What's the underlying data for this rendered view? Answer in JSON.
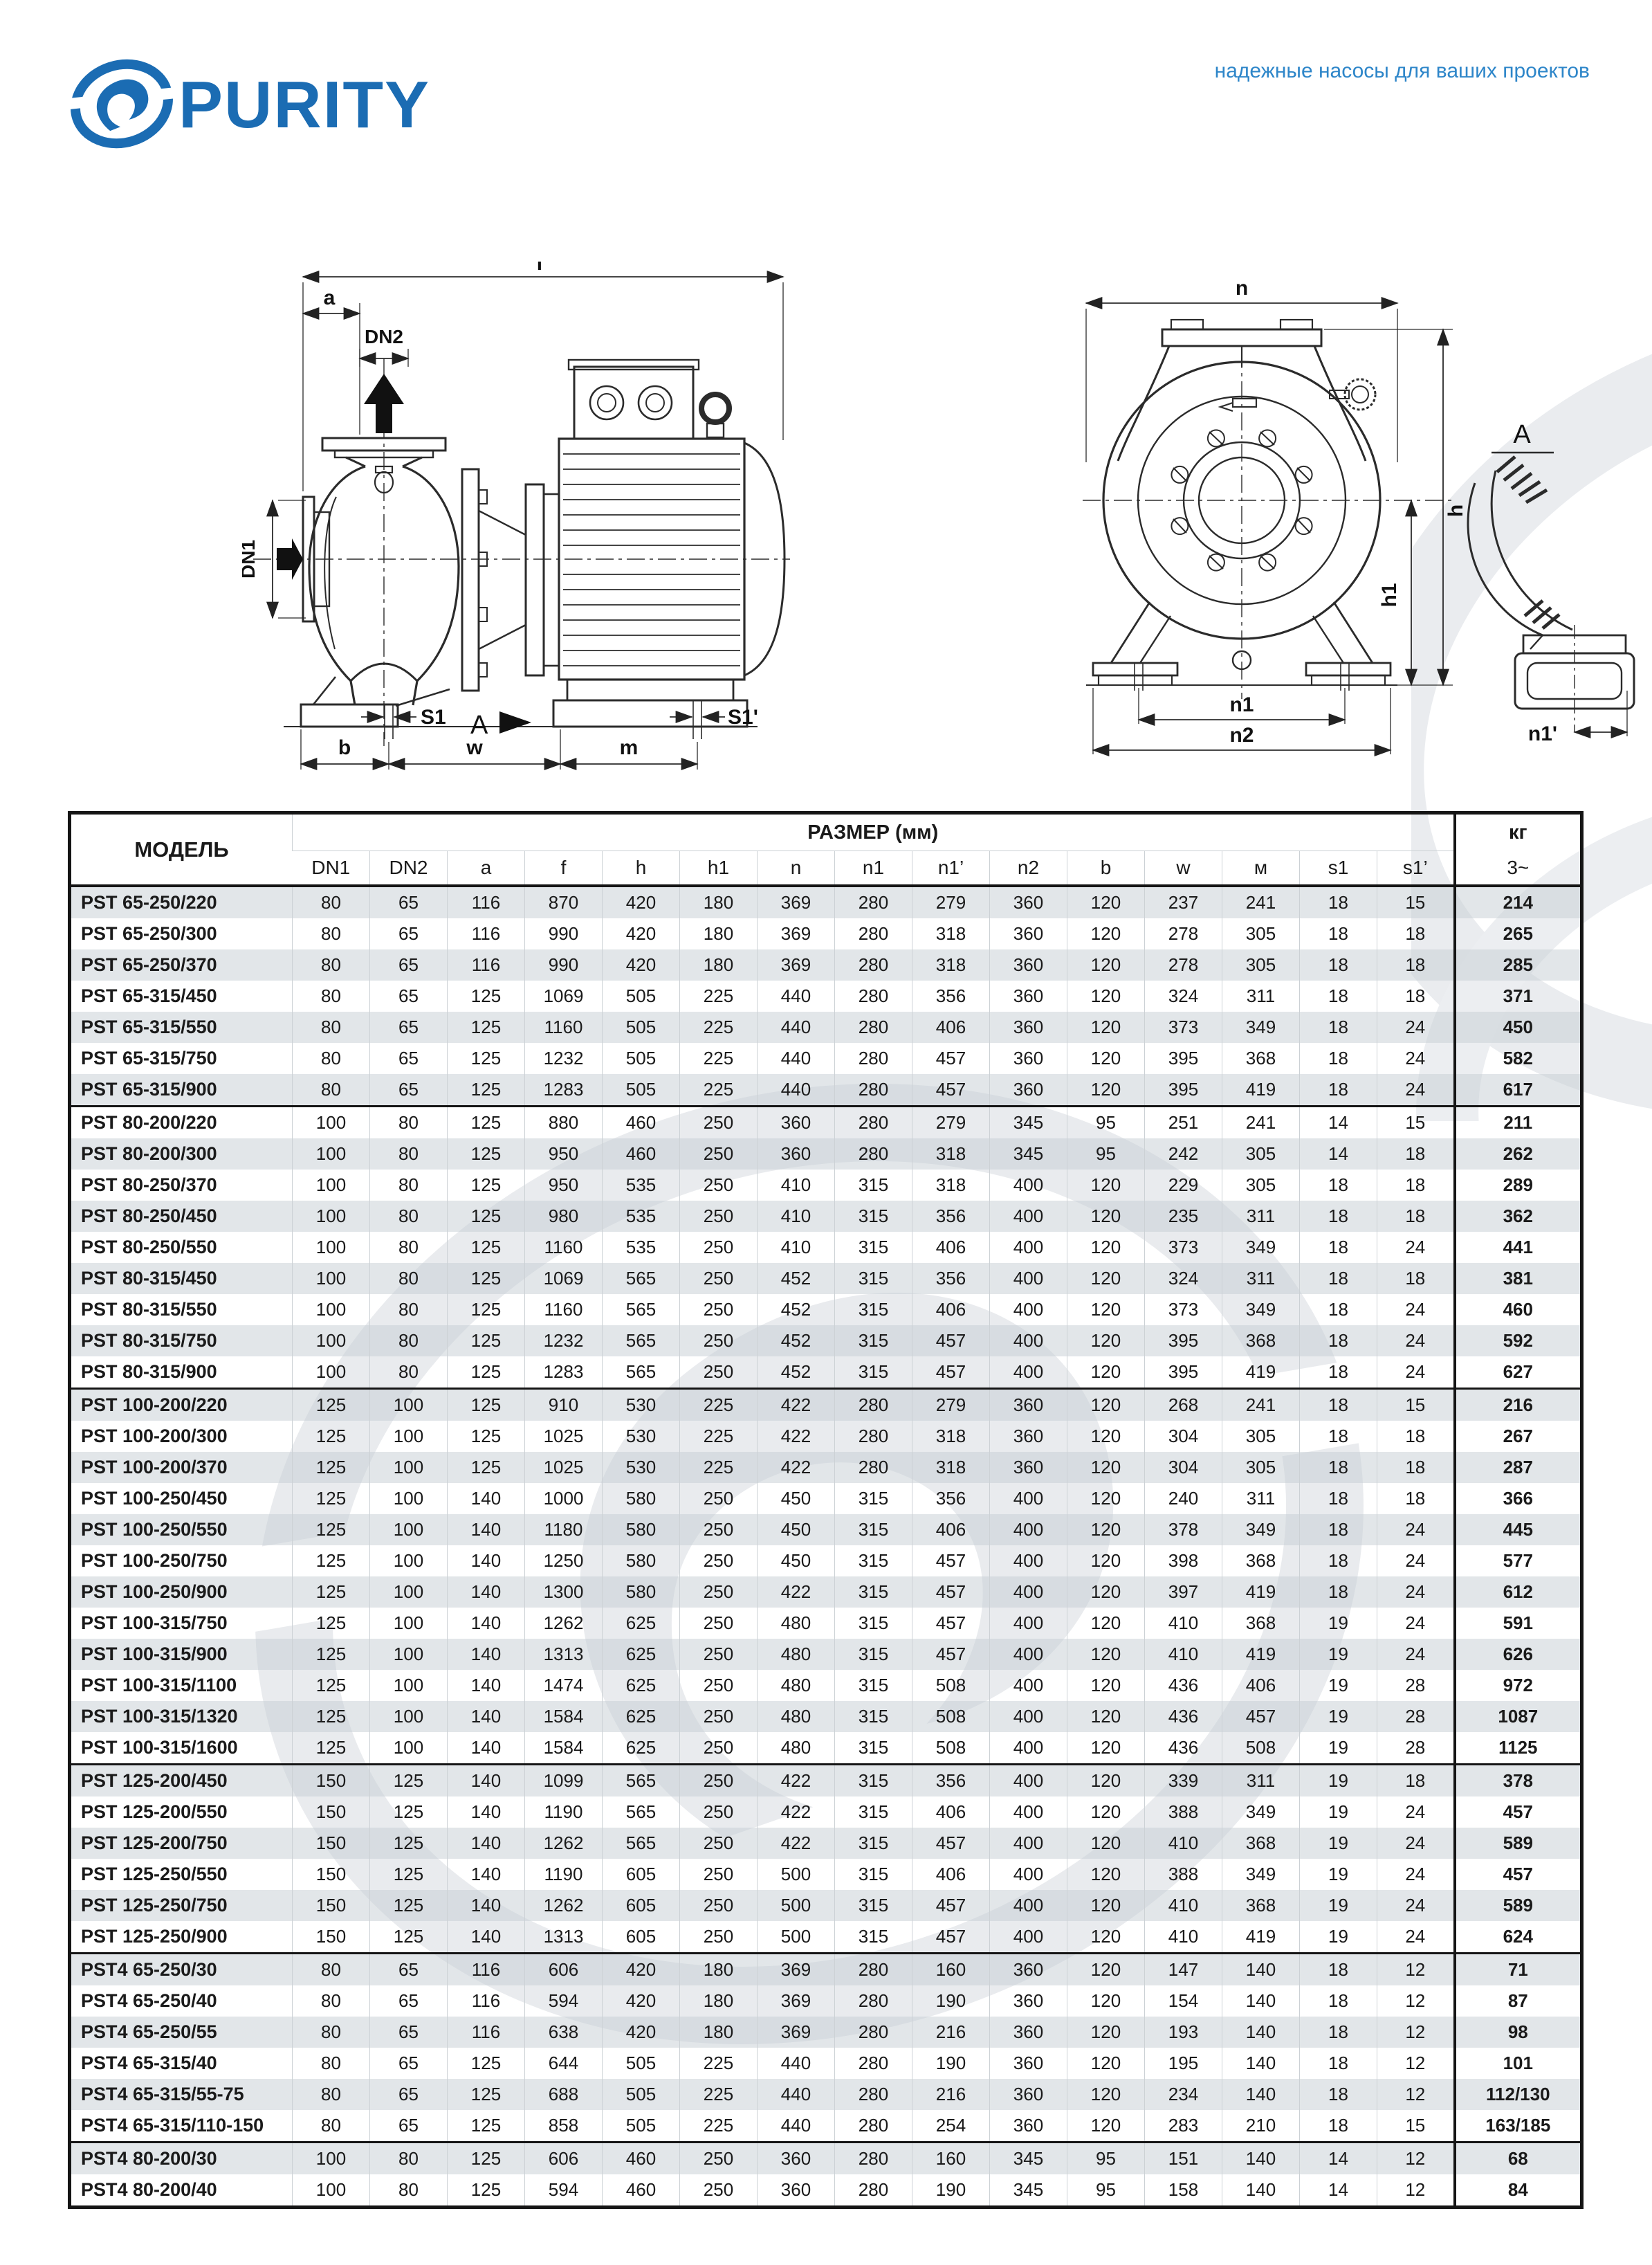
{
  "brand": {
    "wordmark": "PURITY",
    "tagline": "надежные насосы для ваших проектов",
    "accent_color": "#1b6cb3",
    "tagline_color": "#2e86c9"
  },
  "diagram": {
    "f": "f",
    "a": "a",
    "dn2": "DN2",
    "dn1": "DN1",
    "s1": "S1",
    "view_a": "A",
    "s1_prime": "S1'",
    "b": "b",
    "w": "w",
    "m": "m",
    "n": "n",
    "h": "h",
    "h1": "h1",
    "n1": "n1",
    "n2": "n2",
    "detail_a": "A",
    "n1_prime": "n1'"
  },
  "table": {
    "header": {
      "model": "МОДЕЛЬ",
      "size_group": "РАЗМЕР (мм)",
      "kg": "кг",
      "kg_sub": "3~",
      "dims": [
        "DN1",
        "DN2",
        "a",
        "f",
        "h",
        "h1",
        "n",
        "n1",
        "n1’",
        "n2",
        "b",
        "w",
        "м",
        "s1",
        "s1’"
      ]
    },
    "groups": [
      {
        "rows": [
          {
            "model": "PST 65-250/220",
            "values": [
              "80",
              "65",
              "116",
              "870",
              "420",
              "180",
              "369",
              "280",
              "279",
              "360",
              "120",
              "237",
              "241",
              "18",
              "15"
            ],
            "kg": "214"
          },
          {
            "model": "PST 65-250/300",
            "values": [
              "80",
              "65",
              "116",
              "990",
              "420",
              "180",
              "369",
              "280",
              "318",
              "360",
              "120",
              "278",
              "305",
              "18",
              "18"
            ],
            "kg": "265"
          },
          {
            "model": "PST 65-250/370",
            "values": [
              "80",
              "65",
              "116",
              "990",
              "420",
              "180",
              "369",
              "280",
              "318",
              "360",
              "120",
              "278",
              "305",
              "18",
              "18"
            ],
            "kg": "285"
          },
          {
            "model": "PST 65-315/450",
            "values": [
              "80",
              "65",
              "125",
              "1069",
              "505",
              "225",
              "440",
              "280",
              "356",
              "360",
              "120",
              "324",
              "311",
              "18",
              "18"
            ],
            "kg": "371"
          },
          {
            "model": "PST 65-315/550",
            "values": [
              "80",
              "65",
              "125",
              "1160",
              "505",
              "225",
              "440",
              "280",
              "406",
              "360",
              "120",
              "373",
              "349",
              "18",
              "24"
            ],
            "kg": "450"
          },
          {
            "model": "PST 65-315/750",
            "values": [
              "80",
              "65",
              "125",
              "1232",
              "505",
              "225",
              "440",
              "280",
              "457",
              "360",
              "120",
              "395",
              "368",
              "18",
              "24"
            ],
            "kg": "582"
          },
          {
            "model": "PST 65-315/900",
            "values": [
              "80",
              "65",
              "125",
              "1283",
              "505",
              "225",
              "440",
              "280",
              "457",
              "360",
              "120",
              "395",
              "419",
              "18",
              "24"
            ],
            "kg": "617"
          }
        ]
      },
      {
        "rows": [
          {
            "model": "PST 80-200/220",
            "values": [
              "100",
              "80",
              "125",
              "880",
              "460",
              "250",
              "360",
              "280",
              "279",
              "345",
              "95",
              "251",
              "241",
              "14",
              "15"
            ],
            "kg": "211"
          },
          {
            "model": "PST 80-200/300",
            "values": [
              "100",
              "80",
              "125",
              "950",
              "460",
              "250",
              "360",
              "280",
              "318",
              "345",
              "95",
              "242",
              "305",
              "14",
              "18"
            ],
            "kg": "262"
          },
          {
            "model": "PST 80-250/370",
            "values": [
              "100",
              "80",
              "125",
              "950",
              "535",
              "250",
              "410",
              "315",
              "318",
              "400",
              "120",
              "229",
              "305",
              "18",
              "18"
            ],
            "kg": "289"
          },
          {
            "model": "PST 80-250/450",
            "values": [
              "100",
              "80",
              "125",
              "980",
              "535",
              "250",
              "410",
              "315",
              "356",
              "400",
              "120",
              "235",
              "311",
              "18",
              "18"
            ],
            "kg": "362"
          },
          {
            "model": "PST 80-250/550",
            "values": [
              "100",
              "80",
              "125",
              "1160",
              "535",
              "250",
              "410",
              "315",
              "406",
              "400",
              "120",
              "373",
              "349",
              "18",
              "24"
            ],
            "kg": "441"
          },
          {
            "model": "PST 80-315/450",
            "values": [
              "100",
              "80",
              "125",
              "1069",
              "565",
              "250",
              "452",
              "315",
              "356",
              "400",
              "120",
              "324",
              "311",
              "18",
              "18"
            ],
            "kg": "381"
          },
          {
            "model": "PST 80-315/550",
            "values": [
              "100",
              "80",
              "125",
              "1160",
              "565",
              "250",
              "452",
              "315",
              "406",
              "400",
              "120",
              "373",
              "349",
              "18",
              "24"
            ],
            "kg": "460"
          },
          {
            "model": "PST 80-315/750",
            "values": [
              "100",
              "80",
              "125",
              "1232",
              "565",
              "250",
              "452",
              "315",
              "457",
              "400",
              "120",
              "395",
              "368",
              "18",
              "24"
            ],
            "kg": "592"
          },
          {
            "model": "PST 80-315/900",
            "values": [
              "100",
              "80",
              "125",
              "1283",
              "565",
              "250",
              "452",
              "315",
              "457",
              "400",
              "120",
              "395",
              "419",
              "18",
              "24"
            ],
            "kg": "627"
          }
        ]
      },
      {
        "rows": [
          {
            "model": "PST 100-200/220",
            "values": [
              "125",
              "100",
              "125",
              "910",
              "530",
              "225",
              "422",
              "280",
              "279",
              "360",
              "120",
              "268",
              "241",
              "18",
              "15"
            ],
            "kg": "216"
          },
          {
            "model": "PST 100-200/300",
            "values": [
              "125",
              "100",
              "125",
              "1025",
              "530",
              "225",
              "422",
              "280",
              "318",
              "360",
              "120",
              "304",
              "305",
              "18",
              "18"
            ],
            "kg": "267"
          },
          {
            "model": "PST 100-200/370",
            "values": [
              "125",
              "100",
              "125",
              "1025",
              "530",
              "225",
              "422",
              "280",
              "318",
              "360",
              "120",
              "304",
              "305",
              "18",
              "18"
            ],
            "kg": "287"
          },
          {
            "model": "PST 100-250/450",
            "values": [
              "125",
              "100",
              "140",
              "1000",
              "580",
              "250",
              "450",
              "315",
              "356",
              "400",
              "120",
              "240",
              "311",
              "18",
              "18"
            ],
            "kg": "366"
          },
          {
            "model": "PST 100-250/550",
            "values": [
              "125",
              "100",
              "140",
              "1180",
              "580",
              "250",
              "450",
              "315",
              "406",
              "400",
              "120",
              "378",
              "349",
              "18",
              "24"
            ],
            "kg": "445"
          },
          {
            "model": "PST 100-250/750",
            "values": [
              "125",
              "100",
              "140",
              "1250",
              "580",
              "250",
              "450",
              "315",
              "457",
              "400",
              "120",
              "398",
              "368",
              "18",
              "24"
            ],
            "kg": "577"
          },
          {
            "model": "PST 100-250/900",
            "values": [
              "125",
              "100",
              "140",
              "1300",
              "580",
              "250",
              "422",
              "315",
              "457",
              "400",
              "120",
              "397",
              "419",
              "18",
              "24"
            ],
            "kg": "612"
          },
          {
            "model": "PST 100-315/750",
            "values": [
              "125",
              "100",
              "140",
              "1262",
              "625",
              "250",
              "480",
              "315",
              "457",
              "400",
              "120",
              "410",
              "368",
              "19",
              "24"
            ],
            "kg": "591"
          },
          {
            "model": "PST 100-315/900",
            "values": [
              "125",
              "100",
              "140",
              "1313",
              "625",
              "250",
              "480",
              "315",
              "457",
              "400",
              "120",
              "410",
              "419",
              "19",
              "24"
            ],
            "kg": "626"
          },
          {
            "model": "PST 100-315/1100",
            "values": [
              "125",
              "100",
              "140",
              "1474",
              "625",
              "250",
              "480",
              "315",
              "508",
              "400",
              "120",
              "436",
              "406",
              "19",
              "28"
            ],
            "kg": "972"
          },
          {
            "model": "PST 100-315/1320",
            "values": [
              "125",
              "100",
              "140",
              "1584",
              "625",
              "250",
              "480",
              "315",
              "508",
              "400",
              "120",
              "436",
              "457",
              "19",
              "28"
            ],
            "kg": "1087"
          },
          {
            "model": "PST 100-315/1600",
            "values": [
              "125",
              "100",
              "140",
              "1584",
              "625",
              "250",
              "480",
              "315",
              "508",
              "400",
              "120",
              "436",
              "508",
              "19",
              "28"
            ],
            "kg": "1125"
          }
        ]
      },
      {
        "rows": [
          {
            "model": "PST 125-200/450",
            "values": [
              "150",
              "125",
              "140",
              "1099",
              "565",
              "250",
              "422",
              "315",
              "356",
              "400",
              "120",
              "339",
              "311",
              "19",
              "18"
            ],
            "kg": "378"
          },
          {
            "model": "PST 125-200/550",
            "values": [
              "150",
              "125",
              "140",
              "1190",
              "565",
              "250",
              "422",
              "315",
              "406",
              "400",
              "120",
              "388",
              "349",
              "19",
              "24"
            ],
            "kg": "457"
          },
          {
            "model": "PST 125-200/750",
            "values": [
              "150",
              "125",
              "140",
              "1262",
              "565",
              "250",
              "422",
              "315",
              "457",
              "400",
              "120",
              "410",
              "368",
              "19",
              "24"
            ],
            "kg": "589"
          },
          {
            "model": "PST 125-250/550",
            "values": [
              "150",
              "125",
              "140",
              "1190",
              "605",
              "250",
              "500",
              "315",
              "406",
              "400",
              "120",
              "388",
              "349",
              "19",
              "24"
            ],
            "kg": "457"
          },
          {
            "model": "PST 125-250/750",
            "values": [
              "150",
              "125",
              "140",
              "1262",
              "605",
              "250",
              "500",
              "315",
              "457",
              "400",
              "120",
              "410",
              "368",
              "19",
              "24"
            ],
            "kg": "589"
          },
          {
            "model": "PST 125-250/900",
            "values": [
              "150",
              "125",
              "140",
              "1313",
              "605",
              "250",
              "500",
              "315",
              "457",
              "400",
              "120",
              "410",
              "419",
              "19",
              "24"
            ],
            "kg": "624"
          }
        ]
      },
      {
        "rows": [
          {
            "model": "PST4 65-250/30",
            "values": [
              "80",
              "65",
              "116",
              "606",
              "420",
              "180",
              "369",
              "280",
              "160",
              "360",
              "120",
              "147",
              "140",
              "18",
              "12"
            ],
            "kg": "71"
          },
          {
            "model": "PST4 65-250/40",
            "values": [
              "80",
              "65",
              "116",
              "594",
              "420",
              "180",
              "369",
              "280",
              "190",
              "360",
              "120",
              "154",
              "140",
              "18",
              "12"
            ],
            "kg": "87"
          },
          {
            "model": "PST4 65-250/55",
            "values": [
              "80",
              "65",
              "116",
              "638",
              "420",
              "180",
              "369",
              "280",
              "216",
              "360",
              "120",
              "193",
              "140",
              "18",
              "12"
            ],
            "kg": "98"
          },
          {
            "model": "PST4 65-315/40",
            "values": [
              "80",
              "65",
              "125",
              "644",
              "505",
              "225",
              "440",
              "280",
              "190",
              "360",
              "120",
              "195",
              "140",
              "18",
              "12"
            ],
            "kg": "101"
          },
          {
            "model": "PST4 65-315/55-75",
            "values": [
              "80",
              "65",
              "125",
              "688",
              "505",
              "225",
              "440",
              "280",
              "216",
              "360",
              "120",
              "234",
              "140",
              "18",
              "12"
            ],
            "kg": "112/130"
          },
          {
            "model": "PST4 65-315/110-150",
            "values": [
              "80",
              "65",
              "125",
              "858",
              "505",
              "225",
              "440",
              "280",
              "254",
              "360",
              "120",
              "283",
              "210",
              "18",
              "15"
            ],
            "kg": "163/185"
          }
        ]
      },
      {
        "rows": [
          {
            "model": "PST4 80-200/30",
            "values": [
              "100",
              "80",
              "125",
              "606",
              "460",
              "250",
              "360",
              "280",
              "160",
              "345",
              "95",
              "151",
              "140",
              "14",
              "12"
            ],
            "kg": "68"
          },
          {
            "model": "PST4 80-200/40",
            "values": [
              "100",
              "80",
              "125",
              "594",
              "460",
              "250",
              "360",
              "280",
              "190",
              "345",
              "95",
              "158",
              "140",
              "14",
              "12"
            ],
            "kg": "84"
          }
        ]
      }
    ]
  }
}
